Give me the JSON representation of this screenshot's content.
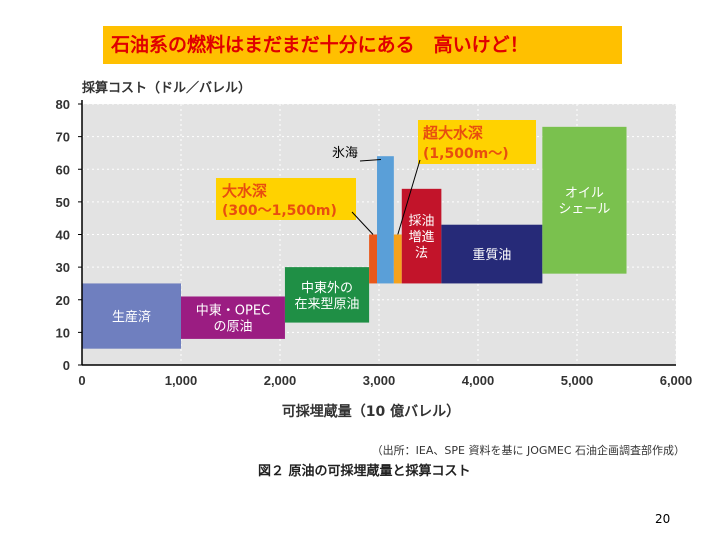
{
  "header": {
    "banner": "石油系の燃料はまだまだ十分にある　高いけど！"
  },
  "page_number": "20",
  "chart_data": {
    "type": "bar",
    "title": "図２ 原油の可採埋蔵量と採算コスト",
    "source": "（出所：IEA、SPE 資料を基に JOGMEC 石油企画調査部作成）",
    "ylabel": "採算コスト（ドル／バレル）",
    "xlabel": "可採埋蔵量（10 億バレル）",
    "xlim": [
      0,
      6000
    ],
    "ylim": [
      0,
      80
    ],
    "xticks": [
      0,
      1000,
      2000,
      3000,
      4000,
      5000,
      6000
    ],
    "xtick_labels": [
      "0",
      "1,000",
      "2,000",
      "3,000",
      "4,000",
      "5,000",
      "6,000"
    ],
    "yticks": [
      0,
      10,
      20,
      30,
      40,
      50,
      60,
      70,
      80
    ],
    "ytick_labels": [
      "0",
      "10",
      "20",
      "30",
      "40",
      "50",
      "60",
      "70",
      "80"
    ],
    "blocks": [
      {
        "name": "produced",
        "label": [
          "生産済"
        ],
        "x0": 0,
        "x1": 1000,
        "y0": 5,
        "y1": 25,
        "color": "#6f7fbf",
        "text_color": "#ffffff"
      },
      {
        "name": "middle-east-opec",
        "label": [
          "中東・OPEC",
          "の原油"
        ],
        "x0": 1000,
        "x1": 2050,
        "y0": 8,
        "y1": 21,
        "color": "#9b1d82",
        "text_color": "#ffffff"
      },
      {
        "name": "non-middle-east",
        "label": [
          "中東外の",
          "在来型原油"
        ],
        "x0": 2050,
        "x1": 2900,
        "y0": 13,
        "y1": 30,
        "color": "#1f8f45",
        "text_color": "#ffffff"
      },
      {
        "name": "deep-water",
        "label": [],
        "x0": 2900,
        "x1": 2980,
        "y0": 25,
        "y1": 40,
        "color": "#e8581c",
        "text_color": "#ffffff"
      },
      {
        "name": "arctic",
        "label": [],
        "x0": 2980,
        "x1": 3150,
        "y0": 25,
        "y1": 64,
        "color": "#5a9fd8",
        "text_color": "#ffffff"
      },
      {
        "name": "ultra-deep-water",
        "label": [],
        "x0": 3150,
        "x1": 3230,
        "y0": 25,
        "y1": 40,
        "color": "#f5a21c",
        "text_color": "#ffffff"
      },
      {
        "name": "enhanced-recovery",
        "label": [
          "採油",
          "増進",
          "法"
        ],
        "x0": 3230,
        "x1": 3630,
        "y0": 25,
        "y1": 54,
        "color": "#c2142a",
        "text_color": "#ffffff"
      },
      {
        "name": "heavy-oil",
        "label": [
          "重質油"
        ],
        "x0": 3630,
        "x1": 4650,
        "y0": 25,
        "y1": 43,
        "color": "#262a78",
        "text_color": "#ffffff"
      },
      {
        "name": "oil-shale",
        "label": [
          "オイル",
          "シェール"
        ],
        "x0": 4650,
        "x1": 5500,
        "y0": 28,
        "y1": 73,
        "color": "#7ac14e",
        "text_color": "#ffffff"
      }
    ],
    "annotations": [
      {
        "name": "deep-water",
        "lines": [
          "大水深",
          "(300〜1,500m)"
        ],
        "color": "#e84e0f",
        "box": "#ffd200"
      },
      {
        "name": "ultra-deep-water",
        "lines": [
          "超大水深",
          "(1,500m〜)"
        ],
        "color": "#e84e0f",
        "box": "#ffd200"
      },
      {
        "name": "arctic",
        "lines": [
          "氷海"
        ],
        "color": "#000000",
        "box": ""
      }
    ]
  }
}
